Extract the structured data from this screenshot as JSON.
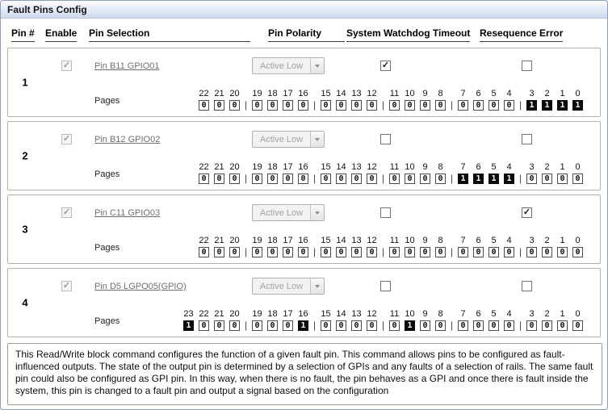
{
  "window": {
    "title": "Fault Pins Config"
  },
  "columns": {
    "pin": "Pin #",
    "enable": "Enable",
    "selection": "Pin Selection",
    "polarity": "Pin Polarity",
    "watchdog": "System Watchdog Timeout",
    "resequence": "Resequence Error"
  },
  "pages_label": "Pages",
  "rows": [
    {
      "pin": "1",
      "enable": true,
      "selection": "Pin B11 GPIO01",
      "polarity": "Active Low",
      "watchdog": true,
      "resequence": false,
      "bit_groups": [
        [
          22,
          21,
          20
        ],
        [
          19,
          18,
          17,
          16
        ],
        [
          15,
          14,
          13,
          12
        ],
        [
          11,
          10,
          9,
          8
        ],
        [
          7,
          6,
          5,
          4
        ],
        [
          3,
          2,
          1,
          0
        ]
      ],
      "set_bits": [
        3,
        2,
        1,
        0
      ]
    },
    {
      "pin": "2",
      "enable": true,
      "selection": "Pin B12 GPIO02",
      "polarity": "Active Low",
      "watchdog": false,
      "resequence": false,
      "bit_groups": [
        [
          22,
          21,
          20
        ],
        [
          19,
          18,
          17,
          16
        ],
        [
          15,
          14,
          13,
          12
        ],
        [
          11,
          10,
          9,
          8
        ],
        [
          7,
          6,
          5,
          4
        ],
        [
          3,
          2,
          1,
          0
        ]
      ],
      "set_bits": [
        7,
        6,
        5,
        4
      ]
    },
    {
      "pin": "3",
      "enable": true,
      "selection": "Pin C11 GPIO03",
      "polarity": "Active Low",
      "watchdog": false,
      "resequence": true,
      "bit_groups": [
        [
          22,
          21,
          20
        ],
        [
          19,
          18,
          17,
          16
        ],
        [
          15,
          14,
          13,
          12
        ],
        [
          11,
          10,
          9,
          8
        ],
        [
          7,
          6,
          5,
          4
        ],
        [
          3,
          2,
          1,
          0
        ]
      ],
      "set_bits": []
    },
    {
      "pin": "4",
      "enable": true,
      "selection": "Pin D5 LGPO05(GPIO)",
      "polarity": "Active Low",
      "watchdog": false,
      "resequence": false,
      "bit_groups": [
        [
          23,
          22,
          21,
          20
        ],
        [
          19,
          18,
          17,
          16
        ],
        [
          15,
          14,
          13,
          12
        ],
        [
          11,
          10,
          9,
          8
        ],
        [
          7,
          6,
          5,
          4
        ],
        [
          3,
          2,
          1,
          0
        ]
      ],
      "set_bits": [
        23,
        16,
        10
      ]
    }
  ],
  "description": "This Read/Write block command configures the function of a given fault pin. This command allows pins to be configured as fault-influenced outputs. The state of the output pin is determined by a selection of GPIs and any faults of a selection of rails. The same fault pin could also be configured as GPI pin. In this way, when there is no fault, the pin behaves as a GPI and once there is fault inside the system, this pin is changed to a fault pin and output a signal based on the configuration",
  "colors": {
    "bit_on_bg": "#0a0a0a",
    "bit_on_text": "#ffffff",
    "titlebar_gradient_start": "#fbfcfe",
    "titlebar_gradient_end": "#ccd9ea",
    "row_border": "#b2b2b2"
  }
}
